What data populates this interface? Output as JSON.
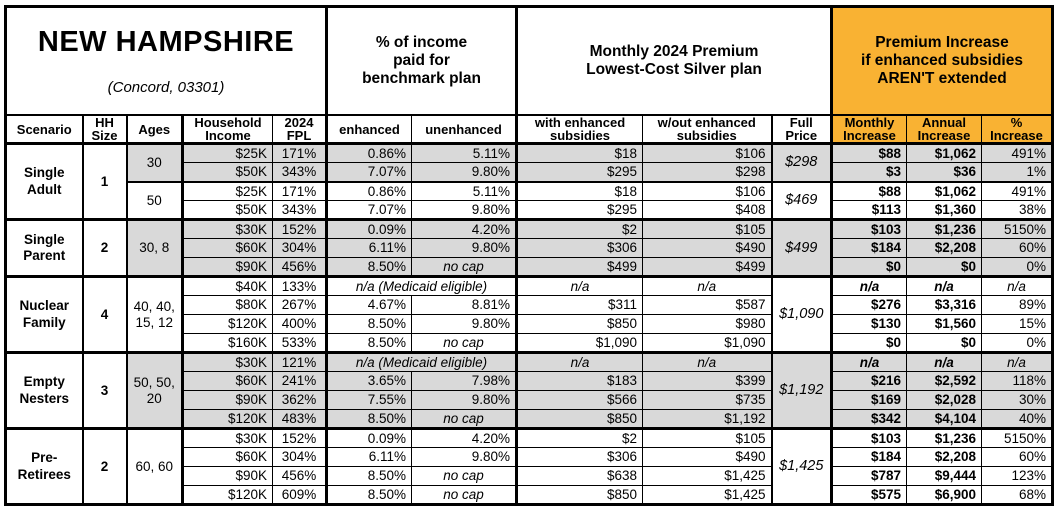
{
  "title": {
    "state": "NEW HAMPSHIRE",
    "location": "(Concord, 03301)"
  },
  "colors": {
    "accent": "#F9B233",
    "shade": "#D9D9D9"
  },
  "groups": {
    "income_pct": "% of income\npaid for\nbenchmark plan",
    "premium": "Monthly 2024 Premium\nLowest-Cost Silver plan",
    "increase": "Premium Increase\nif enhanced subsidies\nAREN'T extended"
  },
  "columns": {
    "scenario": "Scenario",
    "hh_size": "HH\nSize",
    "ages": "Ages",
    "income": "Household\nIncome",
    "fpl": "2024\nFPL",
    "enhanced": "enhanced",
    "unenhanced": "unenhanced",
    "with_sub": "with enhanced\nsubsidies",
    "wo_sub": "w/out enhanced\nsubsidies",
    "full_price": "Full\nPrice",
    "monthly": "Monthly\nIncrease",
    "annual": "Annual\nIncrease",
    "pct": "%\nIncrease"
  },
  "medicaid_note": "n/a (Medicaid eligible)",
  "na": "n/a",
  "scenarios": [
    {
      "name": "Single Adult",
      "hh_size": "1",
      "age_groups": [
        {
          "ages": "30",
          "shaded": true,
          "full_price": "$298",
          "rows": [
            {
              "income": "$25K",
              "fpl": "171%",
              "enhanced": "0.86%",
              "unenhanced": "5.11%",
              "with_sub": "$18",
              "wo_sub": "$106",
              "monthly": "$88",
              "annual": "$1,062",
              "pct": "491%"
            },
            {
              "income": "$50K",
              "fpl": "343%",
              "enhanced": "7.07%",
              "unenhanced": "9.80%",
              "with_sub": "$295",
              "wo_sub": "$298",
              "monthly": "$3",
              "annual": "$36",
              "pct": "1%"
            }
          ]
        },
        {
          "ages": "50",
          "shaded": false,
          "full_price": "$469",
          "rows": [
            {
              "income": "$25K",
              "fpl": "171%",
              "enhanced": "0.86%",
              "unenhanced": "5.11%",
              "with_sub": "$18",
              "wo_sub": "$106",
              "monthly": "$88",
              "annual": "$1,062",
              "pct": "491%"
            },
            {
              "income": "$50K",
              "fpl": "343%",
              "enhanced": "7.07%",
              "unenhanced": "9.80%",
              "with_sub": "$295",
              "wo_sub": "$408",
              "monthly": "$113",
              "annual": "$1,360",
              "pct": "38%"
            }
          ]
        }
      ]
    },
    {
      "name": "Single Parent",
      "hh_size": "2",
      "age_groups": [
        {
          "ages": "30, 8",
          "shaded": true,
          "full_price": "$499",
          "rows": [
            {
              "income": "$30K",
              "fpl": "152%",
              "enhanced": "0.09%",
              "unenhanced": "4.20%",
              "with_sub": "$2",
              "wo_sub": "$105",
              "monthly": "$103",
              "annual": "$1,236",
              "pct": "5150%"
            },
            {
              "income": "$60K",
              "fpl": "304%",
              "enhanced": "6.11%",
              "unenhanced": "9.80%",
              "with_sub": "$306",
              "wo_sub": "$490",
              "monthly": "$184",
              "annual": "$2,208",
              "pct": "60%"
            },
            {
              "income": "$90K",
              "fpl": "456%",
              "enhanced": "8.50%",
              "unenhanced": "no cap",
              "with_sub": "$499",
              "wo_sub": "$499",
              "monthly": "$0",
              "annual": "$0",
              "pct": "0%"
            }
          ]
        }
      ]
    },
    {
      "name": "Nuclear Family",
      "hh_size": "4",
      "age_groups": [
        {
          "ages": "40, 40, 15, 12",
          "shaded": false,
          "full_price": "$1,090",
          "rows": [
            {
              "income": "$40K",
              "fpl": "133%",
              "medicaid": true,
              "with_sub": "n/a",
              "wo_sub": "n/a",
              "monthly": "n/a",
              "annual": "n/a",
              "pct": "n/a"
            },
            {
              "income": "$80K",
              "fpl": "267%",
              "enhanced": "4.67%",
              "unenhanced": "8.81%",
              "with_sub": "$311",
              "wo_sub": "$587",
              "monthly": "$276",
              "annual": "$3,316",
              "pct": "89%"
            },
            {
              "income": "$120K",
              "fpl": "400%",
              "enhanced": "8.50%",
              "unenhanced": "9.80%",
              "with_sub": "$850",
              "wo_sub": "$980",
              "monthly": "$130",
              "annual": "$1,560",
              "pct": "15%"
            },
            {
              "income": "$160K",
              "fpl": "533%",
              "enhanced": "8.50%",
              "unenhanced": "no cap",
              "with_sub": "$1,090",
              "wo_sub": "$1,090",
              "monthly": "$0",
              "annual": "$0",
              "pct": "0%"
            }
          ]
        }
      ]
    },
    {
      "name": "Empty Nesters",
      "hh_size": "3",
      "age_groups": [
        {
          "ages": "50, 50, 20",
          "shaded": true,
          "full_price": "$1,192",
          "rows": [
            {
              "income": "$30K",
              "fpl": "121%",
              "medicaid": true,
              "with_sub": "n/a",
              "wo_sub": "n/a",
              "monthly": "n/a",
              "annual": "n/a",
              "pct": "n/a"
            },
            {
              "income": "$60K",
              "fpl": "241%",
              "enhanced": "3.65%",
              "unenhanced": "7.98%",
              "with_sub": "$183",
              "wo_sub": "$399",
              "monthly": "$216",
              "annual": "$2,592",
              "pct": "118%"
            },
            {
              "income": "$90K",
              "fpl": "362%",
              "enhanced": "7.55%",
              "unenhanced": "9.80%",
              "with_sub": "$566",
              "wo_sub": "$735",
              "monthly": "$169",
              "annual": "$2,028",
              "pct": "30%"
            },
            {
              "income": "$120K",
              "fpl": "483%",
              "enhanced": "8.50%",
              "unenhanced": "no cap",
              "with_sub": "$850",
              "wo_sub": "$1,192",
              "monthly": "$342",
              "annual": "$4,104",
              "pct": "40%"
            }
          ]
        }
      ]
    },
    {
      "name": "Pre-Retirees",
      "hh_size": "2",
      "age_groups": [
        {
          "ages": "60, 60",
          "shaded": false,
          "full_price": "$1,425",
          "rows": [
            {
              "income": "$30K",
              "fpl": "152%",
              "enhanced": "0.09%",
              "unenhanced": "4.20%",
              "with_sub": "$2",
              "wo_sub": "$105",
              "monthly": "$103",
              "annual": "$1,236",
              "pct": "5150%"
            },
            {
              "income": "$60K",
              "fpl": "304%",
              "enhanced": "6.11%",
              "unenhanced": "9.80%",
              "with_sub": "$306",
              "wo_sub": "$490",
              "monthly": "$184",
              "annual": "$2,208",
              "pct": "60%"
            },
            {
              "income": "$90K",
              "fpl": "456%",
              "enhanced": "8.50%",
              "unenhanced": "no cap",
              "with_sub": "$638",
              "wo_sub": "$1,425",
              "monthly": "$787",
              "annual": "$9,444",
              "pct": "123%"
            },
            {
              "income": "$120K",
              "fpl": "609%",
              "enhanced": "8.50%",
              "unenhanced": "no cap",
              "with_sub": "$850",
              "wo_sub": "$1,425",
              "monthly": "$575",
              "annual": "$6,900",
              "pct": "68%"
            }
          ]
        }
      ]
    }
  ]
}
